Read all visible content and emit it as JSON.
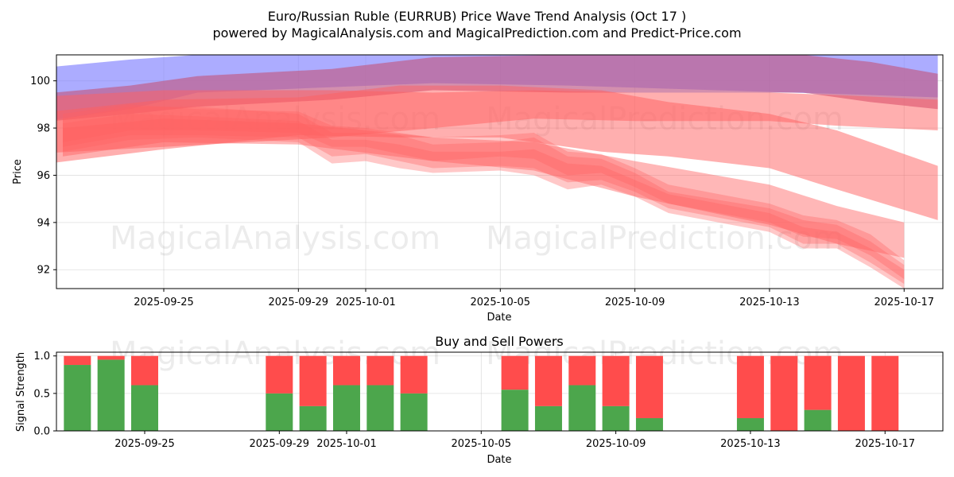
{
  "page": {
    "title_line1": "Euro/Russian Ruble (EURRUB) Price Wave Trend Analysis (Oct 17 )",
    "title_line2": "powered by MagicalAnalysis.com and MagicalPrediction.com and Predict-Price.com"
  },
  "watermarks": [
    "MagicalAnalysis.com",
    "MagicalPrediction.com"
  ],
  "chart_data": [
    {
      "type": "area",
      "xlabel": "Date",
      "ylabel": "Price",
      "ylim": [
        91.2,
        101.1
      ],
      "x_range": [
        "2025-09-21",
        "2025-10-18"
      ],
      "yticks": [
        92,
        94,
        96,
        98,
        100
      ],
      "xticks": [
        "2025-09-25",
        "2025-09-29",
        "2025-10-01",
        "2025-10-05",
        "2025-10-09",
        "2025-10-13",
        "2025-10-17"
      ],
      "grid": true,
      "bands": [
        {
          "color": "#8080ff",
          "opacity": 0.65,
          "x": [
            "2025-09-21",
            "2025-09-24",
            "2025-09-26",
            "2025-10-03",
            "2025-10-07",
            "2025-10-16",
            "2025-10-18"
          ],
          "upper": [
            100.5,
            100.9,
            101.1,
            101.1,
            101.1,
            101.1,
            101.1
          ],
          "lower": [
            98.2,
            98.8,
            99.5,
            99.9,
            99.8,
            99.4,
            99.3
          ]
        },
        {
          "color": "#c0608c",
          "opacity": 0.7,
          "x": [
            "2025-09-21",
            "2025-09-24",
            "2025-09-26",
            "2025-09-30",
            "2025-10-03",
            "2025-10-07",
            "2025-10-10",
            "2025-10-14",
            "2025-10-16",
            "2025-10-18"
          ],
          "upper": [
            99.4,
            99.8,
            100.2,
            100.5,
            101.0,
            101.1,
            101.1,
            101.1,
            100.8,
            100.3
          ],
          "lower": [
            98.2,
            98.6,
            98.9,
            99.2,
            99.6,
            99.5,
            99.5,
            99.5,
            99.1,
            98.8
          ]
        },
        {
          "color": "#ff6060",
          "opacity": 0.5,
          "x": [
            "2025-09-21",
            "2025-09-25",
            "2025-09-30",
            "2025-10-03",
            "2025-10-06",
            "2025-10-09",
            "2025-10-13",
            "2025-10-15",
            "2025-10-18"
          ],
          "upper": [
            99.3,
            99.6,
            99.6,
            99.5,
            99.6,
            99.5,
            99.5,
            99.4,
            99.2
          ],
          "lower": [
            96.9,
            97.2,
            97.6,
            98.0,
            98.4,
            98.3,
            98.3,
            98.1,
            97.9
          ]
        },
        {
          "color": "#ff6060",
          "opacity": 0.5,
          "x": [
            "2025-09-21",
            "2025-09-25",
            "2025-09-29",
            "2025-10-02",
            "2025-10-05",
            "2025-10-08",
            "2025-10-10",
            "2025-10-13",
            "2025-10-15",
            "2025-10-18"
          ],
          "upper": [
            98.6,
            99.2,
            99.3,
            99.8,
            99.8,
            99.6,
            99.1,
            98.6,
            97.9,
            96.4
          ],
          "lower": [
            96.4,
            97.1,
            97.7,
            97.6,
            97.6,
            97.0,
            96.8,
            96.3,
            95.4,
            94.1
          ]
        },
        {
          "color": "#ff6060",
          "opacity": 0.45,
          "x": [
            "2025-09-22",
            "2025-09-25",
            "2025-09-29",
            "2025-10-03",
            "2025-10-06",
            "2025-10-09",
            "2025-10-13",
            "2025-10-15",
            "2025-10-17"
          ],
          "upper": [
            98.0,
            98.4,
            98.2,
            97.6,
            97.4,
            96.6,
            95.6,
            94.7,
            94.0
          ],
          "lower": [
            96.8,
            97.4,
            97.3,
            96.6,
            96.2,
            95.1,
            93.9,
            93.1,
            92.5
          ]
        },
        {
          "color": "#ff6060",
          "opacity": 0.35,
          "x": [
            "2025-09-22",
            "2025-09-24",
            "2025-09-26",
            "2025-09-29",
            "2025-09-30",
            "2025-10-01",
            "2025-10-02",
            "2025-10-03",
            "2025-10-05",
            "2025-10-06",
            "2025-10-07",
            "2025-10-08",
            "2025-10-09",
            "2025-10-10",
            "2025-10-13",
            "2025-10-14",
            "2025-10-15",
            "2025-10-16",
            "2025-10-17"
          ],
          "upper": [
            98.4,
            98.9,
            98.9,
            98.6,
            97.8,
            97.8,
            97.7,
            97.3,
            97.4,
            97.6,
            96.8,
            96.7,
            96.1,
            95.3,
            94.6,
            94.1,
            93.9,
            93.2,
            92.2
          ],
          "lower": [
            97.0,
            97.5,
            97.6,
            97.4,
            96.5,
            96.6,
            96.3,
            96.1,
            96.2,
            96.0,
            95.4,
            95.6,
            95.1,
            94.4,
            93.6,
            92.9,
            92.9,
            92.1,
            91.2
          ]
        },
        {
          "color": "#ff6060",
          "opacity": 0.35,
          "x": [
            "2025-09-22",
            "2025-09-24",
            "2025-09-26",
            "2025-09-29",
            "2025-09-30",
            "2025-10-01",
            "2025-10-02",
            "2025-10-03",
            "2025-10-05",
            "2025-10-06",
            "2025-10-07",
            "2025-10-08",
            "2025-10-09",
            "2025-10-10",
            "2025-10-13",
            "2025-10-14",
            "2025-10-15",
            "2025-10-16",
            "2025-10-17"
          ],
          "upper": [
            98.2,
            98.6,
            98.5,
            98.3,
            97.5,
            97.5,
            97.3,
            97.0,
            97.0,
            97.1,
            96.5,
            96.4,
            95.8,
            95.2,
            94.4,
            93.8,
            93.6,
            92.9,
            92.0
          ],
          "lower": [
            97.2,
            97.7,
            97.7,
            97.6,
            96.8,
            96.9,
            96.6,
            96.3,
            96.4,
            96.3,
            95.7,
            95.8,
            95.3,
            94.6,
            93.8,
            93.1,
            93.1,
            92.3,
            91.4
          ]
        },
        {
          "color": "#ff6060",
          "opacity": 0.35,
          "x": [
            "2025-09-22",
            "2025-09-24",
            "2025-09-26",
            "2025-09-29",
            "2025-09-30",
            "2025-10-01",
            "2025-10-02",
            "2025-10-03",
            "2025-10-05",
            "2025-10-06",
            "2025-10-07",
            "2025-10-08",
            "2025-10-09",
            "2025-10-10",
            "2025-10-13",
            "2025-10-14",
            "2025-10-15",
            "2025-10-16",
            "2025-10-17"
          ],
          "upper": [
            98.6,
            99.0,
            98.8,
            98.7,
            98.1,
            98.0,
            97.8,
            97.6,
            97.7,
            97.8,
            97.0,
            96.9,
            96.3,
            95.6,
            94.8,
            94.3,
            94.1,
            93.5,
            92.4
          ],
          "lower": [
            97.4,
            97.9,
            97.9,
            97.8,
            97.2,
            97.2,
            96.9,
            96.6,
            96.8,
            96.7,
            96.0,
            96.1,
            95.5,
            94.8,
            94.0,
            93.4,
            93.3,
            92.6,
            91.6
          ]
        }
      ]
    },
    {
      "type": "bar",
      "title": "Buy and Sell Powers",
      "xlabel": "Date",
      "ylabel": "Signal Strength",
      "ylim": [
        0,
        1.05
      ],
      "yticks": [
        "0.0",
        "0.5",
        "1.0"
      ],
      "xticks": [
        "2025-09-25",
        "2025-09-29",
        "2025-10-01",
        "2025-10-05",
        "2025-10-09",
        "2025-10-13",
        "2025-10-17"
      ],
      "grid": true,
      "categories": [
        "2025-09-23",
        "2025-09-24",
        "2025-09-25",
        "2025-09-29",
        "2025-09-30",
        "2025-10-01",
        "2025-10-02",
        "2025-10-03",
        "2025-10-06",
        "2025-10-07",
        "2025-10-08",
        "2025-10-09",
        "2025-10-10",
        "2025-10-13",
        "2025-10-14",
        "2025-10-15",
        "2025-10-16",
        "2025-10-17"
      ],
      "series": [
        {
          "color": "#4ca64c",
          "values": [
            0.88,
            0.95,
            0.61,
            0.5,
            0.33,
            0.61,
            0.61,
            0.5,
            0.55,
            0.33,
            0.61,
            0.33,
            0.17,
            0.17,
            0.0,
            0.28,
            0.0,
            0.0
          ]
        },
        {
          "color": "#ff4c4c",
          "values": [
            0.12,
            0.05,
            0.39,
            0.5,
            0.67,
            0.39,
            0.39,
            0.5,
            0.45,
            0.67,
            0.39,
            0.67,
            0.83,
            0.83,
            1.0,
            0.72,
            1.0,
            1.0
          ]
        }
      ]
    }
  ]
}
